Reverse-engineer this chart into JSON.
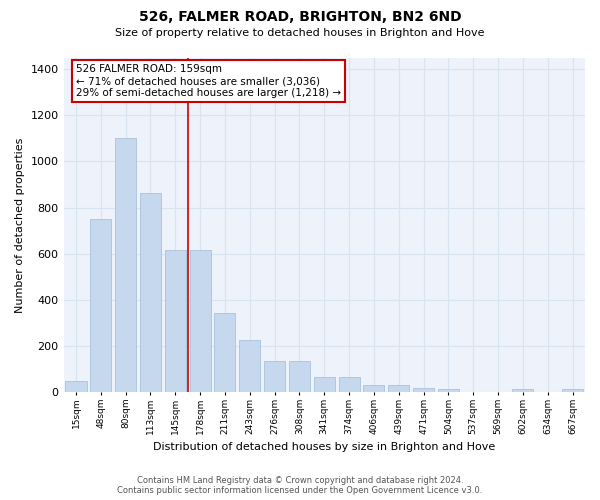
{
  "title": "526, FALMER ROAD, BRIGHTON, BN2 6ND",
  "subtitle": "Size of property relative to detached houses in Brighton and Hove",
  "xlabel": "Distribution of detached houses by size in Brighton and Hove",
  "ylabel": "Number of detached properties",
  "footer_line1": "Contains HM Land Registry data © Crown copyright and database right 2024.",
  "footer_line2": "Contains public sector information licensed under the Open Government Licence v3.0.",
  "categories": [
    "15sqm",
    "48sqm",
    "80sqm",
    "113sqm",
    "145sqm",
    "178sqm",
    "211sqm",
    "243sqm",
    "276sqm",
    "308sqm",
    "341sqm",
    "374sqm",
    "406sqm",
    "439sqm",
    "471sqm",
    "504sqm",
    "537sqm",
    "569sqm",
    "602sqm",
    "634sqm",
    "667sqm"
  ],
  "values": [
    50,
    750,
    1100,
    865,
    615,
    615,
    345,
    225,
    135,
    135,
    65,
    68,
    30,
    30,
    20,
    15,
    0,
    0,
    12,
    0,
    12
  ],
  "bar_color": "#c5d8ee",
  "bar_edge_color": "#a0bbd4",
  "grid_color": "#d8e4f0",
  "annotation_text": "526 FALMER ROAD: 159sqm\n← 71% of detached houses are smaller (3,036)\n29% of semi-detached houses are larger (1,218) →",
  "annotation_box_color": "#ffffff",
  "annotation_box_edge_color": "#cc0000",
  "vline_color": "#cc0000",
  "vline_x_index": 4,
  "ylim": [
    0,
    1450
  ],
  "yticks": [
    0,
    200,
    400,
    600,
    800,
    1000,
    1200,
    1400
  ],
  "background_color": "#ffffff",
  "plot_background_color": "#eef2fa"
}
